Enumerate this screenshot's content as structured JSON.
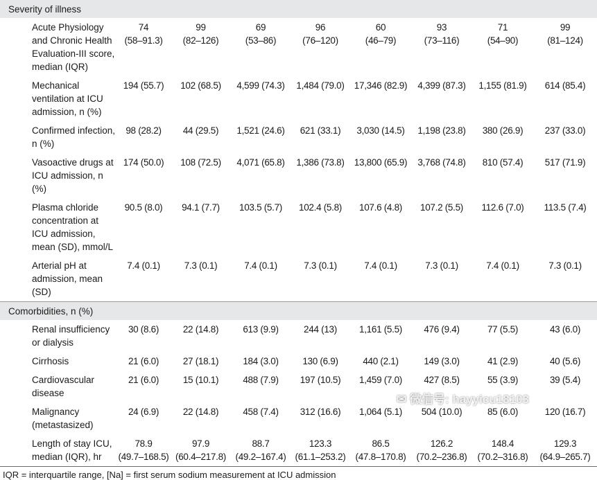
{
  "sections": [
    {
      "title": "Severity of illness",
      "rows": [
        {
          "label": "Acute Physiology and Chronic Health Evaluation-III score, median (IQR)",
          "values": [
            {
              "main": "74",
              "range": "(58–91.3)"
            },
            {
              "main": "99",
              "range": "(82–126)"
            },
            {
              "main": "69",
              "range": "(53–86)"
            },
            {
              "main": "96",
              "range": "(76–120)"
            },
            {
              "main": "60",
              "range": "(46–79)"
            },
            {
              "main": "93",
              "range": "(73–116)"
            },
            {
              "main": "71",
              "range": "(54–90)"
            },
            {
              "main": "99",
              "range": "(81–124)"
            }
          ]
        },
        {
          "label": "Mechanical ventilation at ICU admission, n (%)",
          "values": [
            {
              "main": "194 (55.7)"
            },
            {
              "main": "102 (68.5)"
            },
            {
              "main": "4,599 (74.3)"
            },
            {
              "main": "1,484 (79.0)"
            },
            {
              "main": "17,346 (82.9)"
            },
            {
              "main": "4,399 (87.3)"
            },
            {
              "main": "1,155 (81.9)"
            },
            {
              "main": "614 (85.4)"
            }
          ]
        },
        {
          "label": "Confirmed infection, n (%)",
          "values": [
            {
              "main": "98 (28.2)"
            },
            {
              "main": "44 (29.5)"
            },
            {
              "main": "1,521 (24.6)"
            },
            {
              "main": "621 (33.1)"
            },
            {
              "main": "3,030 (14.5)"
            },
            {
              "main": "1,198 (23.8)"
            },
            {
              "main": "380 (26.9)"
            },
            {
              "main": "237 (33.0)"
            }
          ]
        },
        {
          "label": "Vasoactive drugs at ICU admission, n (%)",
          "values": [
            {
              "main": "174 (50.0)"
            },
            {
              "main": "108 (72.5)"
            },
            {
              "main": "4,071 (65.8)"
            },
            {
              "main": "1,386 (73.8)"
            },
            {
              "main": "13,800 (65.9)"
            },
            {
              "main": "3,768 (74.8)"
            },
            {
              "main": "810 (57.4)"
            },
            {
              "main": "517 (71.9)"
            }
          ]
        },
        {
          "label": "Plasma chloride concentration at ICU admission, mean (SD), mmol/L",
          "values": [
            {
              "main": "90.5 (8.0)"
            },
            {
              "main": "94.1 (7.7)"
            },
            {
              "main": "103.5 (5.7)"
            },
            {
              "main": "102.4 (5.8)"
            },
            {
              "main": "107.6 (4.8)"
            },
            {
              "main": "107.2 (5.5)"
            },
            {
              "main": "112.6 (7.0)"
            },
            {
              "main": "113.5 (7.4)"
            }
          ]
        },
        {
          "label": "Arterial pH at admission, mean (SD)",
          "values": [
            {
              "main": "7.4 (0.1)"
            },
            {
              "main": "7.3 (0.1)"
            },
            {
              "main": "7.4 (0.1)"
            },
            {
              "main": "7.3 (0.1)"
            },
            {
              "main": "7.4 (0.1)"
            },
            {
              "main": "7.3 (0.1)"
            },
            {
              "main": "7.4 (0.1)"
            },
            {
              "main": "7.3 (0.1)"
            }
          ]
        }
      ]
    },
    {
      "title": "Comorbidities, n (%)",
      "rows": [
        {
          "label": "Renal insufficiency or dialysis",
          "values": [
            {
              "main": "30 (8.6)"
            },
            {
              "main": "22 (14.8)"
            },
            {
              "main": "613 (9.9)"
            },
            {
              "main": "244 (13)"
            },
            {
              "main": "1,161 (5.5)"
            },
            {
              "main": "476 (9.4)"
            },
            {
              "main": "77 (5.5)"
            },
            {
              "main": "43 (6.0)"
            }
          ]
        },
        {
          "label": "Cirrhosis",
          "values": [
            {
              "main": "21 (6.0)"
            },
            {
              "main": "27 (18.1)"
            },
            {
              "main": "184 (3.0)"
            },
            {
              "main": "130 (6.9)"
            },
            {
              "main": "440 (2.1)"
            },
            {
              "main": "149 (3.0)"
            },
            {
              "main": "41 (2.9)"
            },
            {
              "main": "40 (5.6)"
            }
          ]
        },
        {
          "label": "Cardiovascular disease",
          "values": [
            {
              "main": "21 (6.0)"
            },
            {
              "main": "15 (10.1)"
            },
            {
              "main": "488 (7.9)"
            },
            {
              "main": "197 (10.5)"
            },
            {
              "main": "1,459 (7.0)"
            },
            {
              "main": "427 (8.5)"
            },
            {
              "main": "55 (3.9)"
            },
            {
              "main": "39 (5.4)"
            }
          ]
        },
        {
          "label": "Malignancy (metastasized)",
          "values": [
            {
              "main": "24 (6.9)"
            },
            {
              "main": "22 (14.8)"
            },
            {
              "main": "458 (7.4)"
            },
            {
              "main": "312 (16.6)"
            },
            {
              "main": "1,064 (5.1)"
            },
            {
              "main": "504 (10.0)"
            },
            {
              "main": "85 (6.0)"
            },
            {
              "main": "120 (16.7)"
            }
          ]
        },
        {
          "label": "Length of stay ICU, median (IQR), hr",
          "values": [
            {
              "main": "78.9",
              "range": "(49.7–168.5)"
            },
            {
              "main": "97.9",
              "range": "(60.4–217.8)"
            },
            {
              "main": "88.7",
              "range": "(49.2–167.4)"
            },
            {
              "main": "123.3",
              "range": "(61.1–253.2)"
            },
            {
              "main": "86.5",
              "range": "(47.8–170.8)"
            },
            {
              "main": "126.2",
              "range": "(70.2–236.8)"
            },
            {
              "main": "148.4",
              "range": "(70.2–316.8)"
            },
            {
              "main": "129.3",
              "range": "(64.9–265.7)"
            }
          ]
        }
      ]
    }
  ],
  "footnote": "IQR = interquartile range, [Na]   = first serum sodium measurement at ICU admission",
  "watermark": "微信号: hayyicu18103"
}
